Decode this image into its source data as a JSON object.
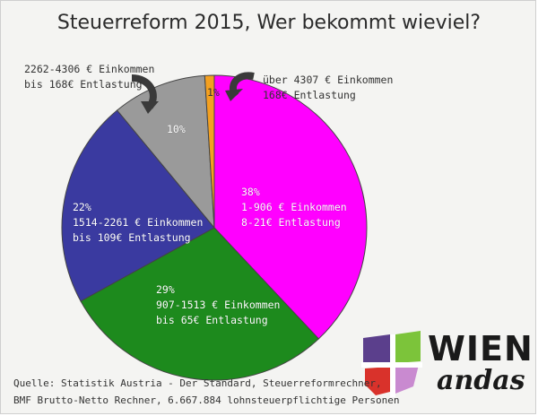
{
  "chart_data": {
    "type": "pie",
    "title": "Steuerreform 2015, Wer bekommt wieviel?",
    "slices": [
      {
        "value": 38,
        "label": "38%",
        "lines": [
          "38%",
          "1-906 € Einkommen",
          "8-21€ Entlastung"
        ],
        "color": "#ff00ff"
      },
      {
        "value": 29,
        "label": "29%",
        "lines": [
          "29%",
          "907-1513 € Einkommen",
          "bis 65€ Entlastung"
        ],
        "color": "#1d8a1d"
      },
      {
        "value": 22,
        "label": "22%",
        "lines": [
          "22%",
          "1514-2261 € Einkommen",
          "bis 109€ Entlastung"
        ],
        "color": "#3a3aa0"
      },
      {
        "value": 10,
        "label": "10%",
        "lines": [
          "10%"
        ],
        "color": "#9a9a9a"
      },
      {
        "value": 1,
        "label": "1%",
        "lines": [
          "1%"
        ],
        "color": "#f4a020"
      }
    ]
  },
  "callouts": {
    "left": [
      "2262-4306 € Einkommen",
      "bis 168€ Entlastung"
    ],
    "right": [
      "über 4307 € Einkommen",
      "168€ Entlastung"
    ]
  },
  "source": {
    "line1": "Quelle: Statistik Austria - Der Standard, Steuerreformrechner,",
    "line2": "BMF Brutto-Netto Rechner, 6.667.884 lohnsteuerpflichtige Personen"
  },
  "logo": {
    "word1": "WIEN",
    "word2": "andas"
  }
}
